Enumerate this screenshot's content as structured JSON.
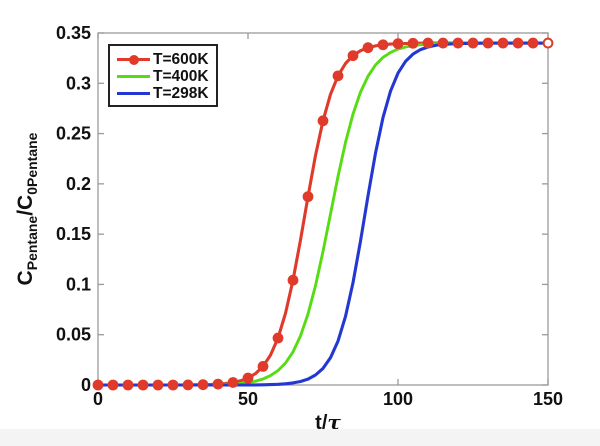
{
  "figure": {
    "background": "#ffffff",
    "bottom_strip_color": "#f4f4f4"
  },
  "chart_data": {
    "type": "line",
    "title": "",
    "xlabel_main": "t/",
    "xlabel_tau": "τ",
    "ylabel_parts": {
      "c1": "C",
      "sub1": "Pentane",
      "c2": "/C",
      "sub2": "0Pentane"
    },
    "xlim": [
      0,
      150
    ],
    "ylim": [
      0,
      0.35
    ],
    "grid": false,
    "axis_color": "#9a9a9a",
    "tick_label_color": "#111111",
    "plateau_value": 0.34,
    "xticks": [
      {
        "v": 0,
        "label": "0"
      },
      {
        "v": 50,
        "label": "50"
      },
      {
        "v": 100,
        "label": "100"
      },
      {
        "v": 150,
        "label": "150"
      }
    ],
    "yticks": [
      {
        "v": 0,
        "label": "0"
      },
      {
        "v": 0.05,
        "label": "0.05"
      },
      {
        "v": 0.1,
        "label": "0.1"
      },
      {
        "v": 0.15,
        "label": "0.15"
      },
      {
        "v": 0.2,
        "label": "0.2"
      },
      {
        "v": 0.25,
        "label": "0.25"
      },
      {
        "v": 0.3,
        "label": "0.3"
      },
      {
        "v": 0.35,
        "label": "0.35"
      }
    ],
    "series": [
      {
        "name": "T=600K",
        "color": "#e03a2a",
        "line_width": 3.1,
        "marker": "circle",
        "marker_radius": 4.4,
        "marker_every": 2,
        "last_marker_open": true,
        "x_start": 0,
        "x_step": 2.5,
        "y": [
          0,
          0,
          0,
          0,
          0,
          0,
          0,
          0,
          0,
          0,
          0,
          0,
          0.0001,
          0.0002,
          0.0003,
          0.0005,
          0.0009,
          0.0015,
          0.0025,
          0.0042,
          0.0069,
          0.0113,
          0.0185,
          0.0297,
          0.0467,
          0.0713,
          0.1042,
          0.1442,
          0.1873,
          0.2283,
          0.2627,
          0.289,
          0.3074,
          0.3197,
          0.3275,
          0.3324,
          0.3354,
          0.3372,
          0.3383,
          0.339,
          0.3394,
          0.3396,
          0.3398,
          0.3399,
          0.34,
          0.34,
          0.34,
          0.34,
          0.34,
          0.34,
          0.34,
          0.34,
          0.34,
          0.34,
          0.34,
          0.34,
          0.34,
          0.34,
          0.34,
          0.34,
          0.34
        ]
      },
      {
        "name": "T=400K",
        "color": "#55dc12",
        "line_width": 2.9,
        "marker": "none",
        "x_start": 0,
        "x_step": 2.5,
        "y": [
          0,
          0,
          0,
          0,
          0,
          0,
          0,
          0,
          0,
          0,
          0,
          0,
          0,
          0.0001,
          0.0002,
          0.0003,
          0.0004,
          0.0007,
          0.001,
          0.0016,
          0.0025,
          0.0038,
          0.006,
          0.0093,
          0.0143,
          0.0219,
          0.0329,
          0.0488,
          0.0706,
          0.0988,
          0.1327,
          0.17,
          0.2073,
          0.2412,
          0.2694,
          0.2912,
          0.307,
          0.3182,
          0.3257,
          0.3307,
          0.334,
          0.3361,
          0.3375,
          0.3384,
          0.339,
          0.3394,
          0.3396,
          0.3397,
          0.3398,
          0.3399,
          0.34,
          0.34,
          0.34,
          0.34,
          0.34,
          0.34,
          0.34,
          0.34,
          0.34,
          0.34,
          0.34
        ]
      },
      {
        "name": "T=298K",
        "color": "#2338d3",
        "line_width": 3.1,
        "marker": "none",
        "x_start": 0,
        "x_step": 2.5,
        "y": [
          0,
          0,
          0,
          0,
          0,
          0,
          0,
          0,
          0,
          0,
          0,
          0,
          0,
          0,
          0,
          0,
          0,
          0,
          0,
          0,
          0,
          0.0001,
          0.0002,
          0.0004,
          0.0007,
          0.0012,
          0.0021,
          0.0035,
          0.0059,
          0.0099,
          0.0165,
          0.0271,
          0.0437,
          0.0682,
          0.1017,
          0.1431,
          0.188,
          0.2306,
          0.2659,
          0.2921,
          0.3101,
          0.3218,
          0.329,
          0.3335,
          0.3361,
          0.3377,
          0.3387,
          0.3392,
          0.3395,
          0.3397,
          0.3398,
          0.3399,
          0.34,
          0.34,
          0.34,
          0.34,
          0.34,
          0.34,
          0.34,
          0.34,
          0.34
        ]
      }
    ],
    "legend": {
      "position": "top-left",
      "border_color": "#222222",
      "items": [
        {
          "label": "T=600K",
          "color": "#e03a2a",
          "marker": true
        },
        {
          "label": "T=400K",
          "color": "#55dc12",
          "marker": false
        },
        {
          "label": "T=298K",
          "color": "#2338d3",
          "marker": false
        }
      ]
    }
  }
}
